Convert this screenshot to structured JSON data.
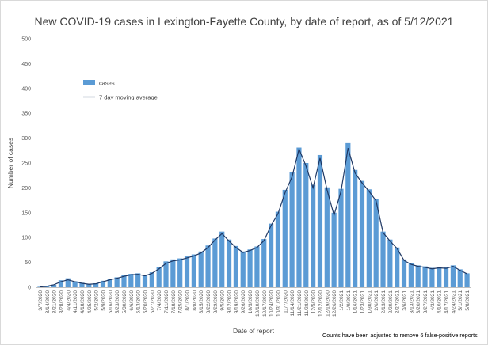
{
  "chart_data": {
    "type": "bar",
    "title": "New COVID-19 cases in Lexington-Fayette County, by date of report, as of 5/12/2021",
    "xlabel": "Date of report",
    "ylabel": "Number of cases",
    "ylim": [
      0,
      500
    ],
    "yticks": [
      0,
      50,
      100,
      150,
      200,
      250,
      300,
      350,
      400,
      450,
      500
    ],
    "grid": false,
    "legend_position": "top-left",
    "colors": {
      "bars": "#5b9bd5",
      "line": "#1f3864"
    },
    "footnote": "Counts have been adjusted to remove 6 false-positive reports",
    "series": [
      {
        "name": "cases",
        "type": "bar"
      },
      {
        "name": "7 day moving average",
        "type": "line"
      }
    ],
    "x": [
      "3/7/2020",
      "3/14/2020",
      "3/21/2020",
      "3/28/2020",
      "4/4/2020",
      "4/11/2020",
      "4/18/2020",
      "4/25/2020",
      "5/2/2020",
      "5/9/2020",
      "5/16/2020",
      "5/23/2020",
      "5/30/2020",
      "6/6/2020",
      "6/13/2020",
      "6/20/2020",
      "6/27/2020",
      "7/4/2020",
      "7/11/2020",
      "7/18/2020",
      "7/25/2020",
      "8/1/2020",
      "8/8/2020",
      "8/15/2020",
      "8/22/2020",
      "8/29/2020",
      "9/5/2020",
      "9/12/2020",
      "9/19/2020",
      "9/26/2020",
      "10/3/2020",
      "10/10/2020",
      "10/17/2020",
      "10/24/2020",
      "10/31/2020",
      "11/7/2020",
      "11/14/2020",
      "11/21/2020",
      "11/28/2020",
      "12/5/2020",
      "12/12/2020",
      "12/19/2020",
      "12/26/2020",
      "1/2/2021",
      "1/9/2021",
      "1/16/2021",
      "1/23/2021",
      "1/30/2021",
      "2/6/2021",
      "2/13/2021",
      "2/20/2021",
      "2/27/2021",
      "3/6/2021",
      "3/13/2021",
      "3/20/2021",
      "3/27/2021",
      "4/3/2021",
      "4/10/2021",
      "4/17/2021",
      "4/24/2021",
      "5/1/2021",
      "5/8/2021"
    ],
    "cases": [
      1,
      3,
      5,
      14,
      18,
      12,
      9,
      7,
      8,
      13,
      17,
      20,
      24,
      27,
      28,
      25,
      30,
      40,
      52,
      56,
      58,
      62,
      66,
      72,
      84,
      98,
      112,
      96,
      83,
      72,
      76,
      82,
      97,
      128,
      152,
      196,
      232,
      281,
      250,
      206,
      266,
      201,
      150,
      198,
      290,
      236,
      214,
      197,
      178,
      112,
      96,
      80,
      56,
      48,
      44,
      42,
      39,
      41,
      40,
      44,
      36,
      28
    ],
    "moving_average": [
      0.5,
      2,
      5,
      11,
      15,
      11,
      8,
      6,
      7,
      11,
      15,
      18,
      22,
      25,
      26,
      23,
      28,
      37,
      48,
      53,
      55,
      59,
      63,
      69,
      80,
      95,
      108,
      93,
      80,
      70,
      74,
      80,
      94,
      124,
      148,
      190,
      222,
      278,
      244,
      200,
      260,
      196,
      145,
      193,
      280,
      230,
      210,
      193,
      174,
      110,
      93,
      78,
      54,
      46,
      42,
      40,
      37,
      39,
      38,
      42,
      34,
      27
    ]
  }
}
